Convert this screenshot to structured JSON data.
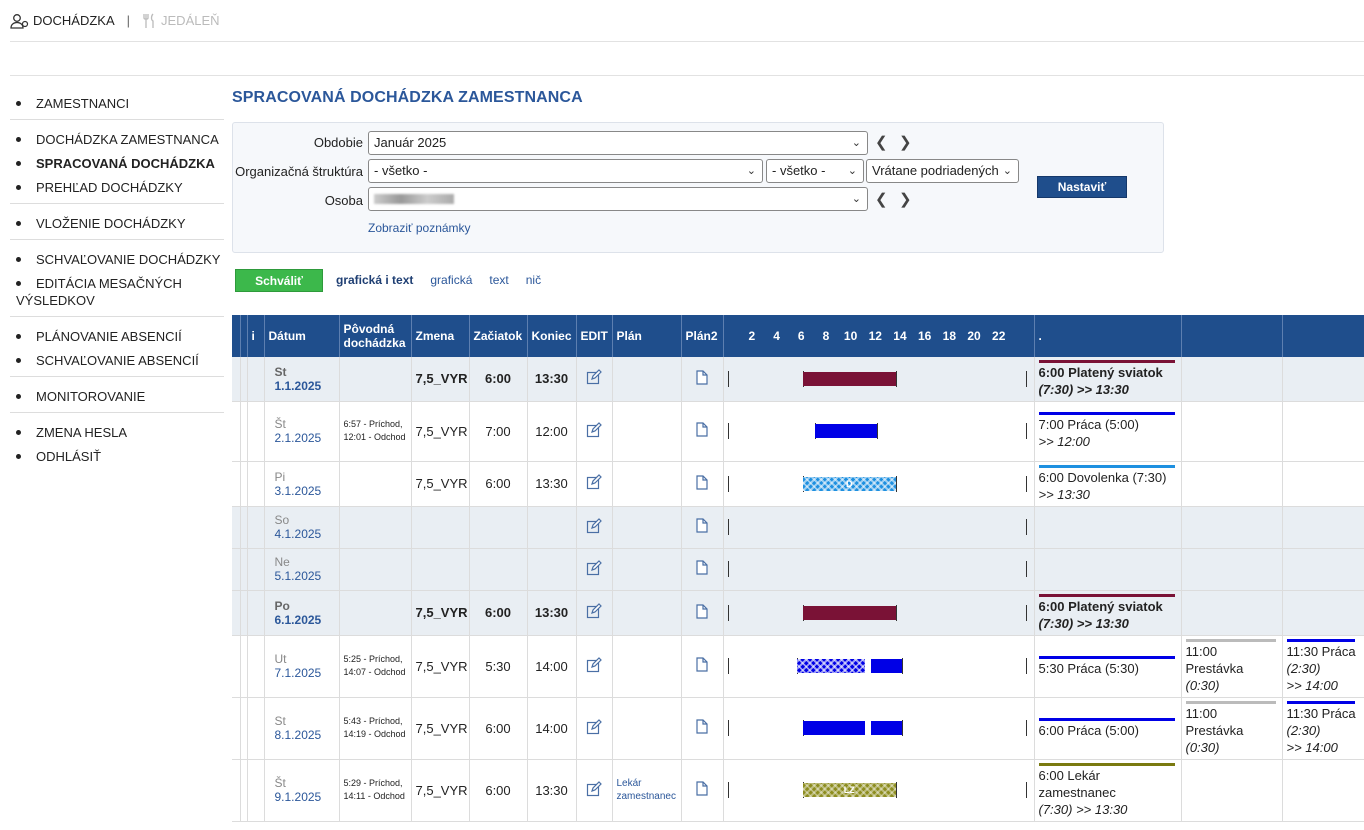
{
  "topnav": {
    "attendance": "DOCHÁDZKA",
    "separator": "|",
    "canteen": "JEDÁLEŇ"
  },
  "sidebar": {
    "items": [
      {
        "label": "ZAMESTNANCI"
      },
      {
        "label": "DOCHÁDZKA ZAMESTNANCA"
      },
      {
        "label": "SPRACOVANÁ DOCHÁDZKA"
      },
      {
        "label": "PREHĽAD DOCHÁDZKY"
      },
      {
        "label": "VLOŽENIE DOCHÁDZKY"
      },
      {
        "label": "SCHVAĽOVANIE DOCHÁDZKY"
      },
      {
        "label": "EDITÁCIA MESAČNÝCH VÝSLEDKOV"
      },
      {
        "label": "PLÁNOVANIE ABSENCIÍ"
      },
      {
        "label": "SCHVAĽOVANIE ABSENCIÍ"
      },
      {
        "label": "MONITOROVANIE"
      },
      {
        "label": "ZMENA HESLA"
      },
      {
        "label": "ODHLÁSIŤ"
      }
    ]
  },
  "page_title": "SPRACOVANÁ DOCHÁDZKA ZAMESTNANCA",
  "filter": {
    "period_label": "Obdobie",
    "period_value": "Január 2025",
    "org_label": "Organizačná štruktúra",
    "org_value": "- všetko -",
    "org_value2": "- všetko -",
    "org_scope": "Vrátane podriadených",
    "person_label": "Osoba",
    "set_button": "Nastaviť",
    "notes_link": "Zobraziť poznámky"
  },
  "actions": {
    "approve": "Schváliť",
    "view_graphic_text": "grafická i text",
    "view_graphic": "grafická",
    "view_text": "text",
    "view_none": "nič"
  },
  "table": {
    "headers": {
      "info": "i",
      "date": "Dátum",
      "orig": "Pôvodná dochádzka",
      "shift": "Zmena",
      "start": "Začiatok",
      "end": "Koniec",
      "edit": "EDIT",
      "plan": "Plán",
      "plan2": "Plán2",
      "after": "."
    },
    "hours": [
      "2",
      "4",
      "6",
      "8",
      "10",
      "12",
      "14",
      "16",
      "18",
      "20",
      "22"
    ],
    "rows": [
      {
        "day": "St",
        "date": "1.1.2025",
        "orig": "",
        "shift": "7,5_VYR",
        "start": "6:00",
        "end": "13:30",
        "plan": "",
        "type": "hol",
        "s1_head": "6:00  Platený sviatok",
        "s1_tail": "(7:30) >> 13:30"
      },
      {
        "day": "Št",
        "date": "2.1.2025",
        "orig": "6:57 - Príchod, 12:01 - Odchod",
        "shift": "7,5_VYR",
        "start": "7:00",
        "end": "12:00",
        "plan": "",
        "type": "",
        "s1_head": "7:00  Práca (5:00)",
        "s1_tail": ">> 12:00"
      },
      {
        "day": "Pi",
        "date": "3.1.2025",
        "orig": "",
        "shift": "7,5_VYR",
        "start": "6:00",
        "end": "13:30",
        "plan": "",
        "type": "",
        "s1_head": "6:00  Dovolenka (7:30)",
        "s1_tail": ">> 13:30"
      },
      {
        "day": "So",
        "date": "4.1.2025",
        "orig": "",
        "shift": "",
        "start": "",
        "end": "",
        "plan": "",
        "type": "wkd",
        "s1_head": "",
        "s1_tail": ""
      },
      {
        "day": "Ne",
        "date": "5.1.2025",
        "orig": "",
        "shift": "",
        "start": "",
        "end": "",
        "plan": "",
        "type": "wkd",
        "s1_head": "",
        "s1_tail": ""
      },
      {
        "day": "Po",
        "date": "6.1.2025",
        "orig": "",
        "shift": "7,5_VYR",
        "start": "6:00",
        "end": "13:30",
        "plan": "",
        "type": "hol",
        "s1_head": "6:00  Platený sviatok",
        "s1_tail": "(7:30) >> 13:30"
      },
      {
        "day": "Ut",
        "date": "7.1.2025",
        "orig": "5:25 - Príchod, 14:07 - Odchod",
        "shift": "7,5_VYR",
        "start": "5:30",
        "end": "14:00",
        "plan": "",
        "type": "",
        "s1_head": "5:30  Práca (5:30)",
        "s1_tail": "",
        "s2_head": "11:00  Prestávka",
        "s2_tail": "(0:30)",
        "s3_head": "11:30  Práca",
        "s3_mid": "(2:30)",
        "s3_tail": ">> 14:00"
      },
      {
        "day": "St",
        "date": "8.1.2025",
        "orig": "5:43 - Príchod, 14:19 - Odchod",
        "shift": "7,5_VYR",
        "start": "6:00",
        "end": "14:00",
        "plan": "",
        "type": "",
        "s1_head": "6:00  Práca (5:00)",
        "s1_tail": "",
        "s2_head": "11:00  Prestávka",
        "s2_tail": "(0:30)",
        "s3_head": "11:30  Práca",
        "s3_mid": "(2:30)",
        "s3_tail": ">> 14:00"
      },
      {
        "day": "Št",
        "date": "9.1.2025",
        "orig": "5:29 - Príchod, 14:11 - Odchod",
        "shift": "7,5_VYR",
        "start": "6:00",
        "end": "13:30",
        "plan": "Lekár zamestnanec",
        "type": "",
        "s1_head": "6:00  Lekár zamestnanec",
        "s1_tail": "(7:30) >> 13:30"
      }
    ]
  },
  "bar_labels": {
    "vacation": "D",
    "doctor": "LZ"
  },
  "colors": {
    "header_bg": "#1f4e8c",
    "holiday": "#7a1236",
    "work": "#0000e6",
    "vacation": "#1e90e0",
    "doctor": "#8d8d1f",
    "break": "#bbbbbb",
    "approve": "#3cb84b"
  }
}
